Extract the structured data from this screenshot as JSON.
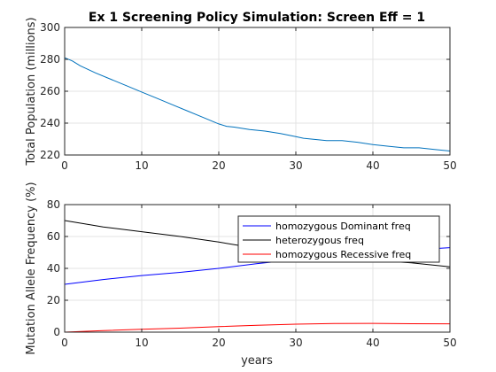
{
  "chart_data": [
    {
      "type": "line",
      "title": "Ex 1 Screening Policy Simulation: Screen Eff = 1",
      "xlabel": "",
      "ylabel": "Total Population (millions)",
      "xlim": [
        0,
        50
      ],
      "ylim": [
        220,
        300
      ],
      "xticks": [
        0,
        10,
        20,
        30,
        40,
        50
      ],
      "yticks": [
        220,
        240,
        260,
        280,
        300
      ],
      "grid": true,
      "series": [
        {
          "color": "#0072bd",
          "x": [
            0,
            1,
            2,
            4,
            6,
            8,
            10,
            12,
            14,
            16,
            18,
            20,
            21,
            22,
            24,
            26,
            28,
            30,
            31,
            32,
            34,
            36,
            38,
            40,
            42,
            44,
            46,
            48,
            50
          ],
          "y": [
            281,
            279,
            276,
            271.5,
            267.5,
            263.5,
            259.5,
            255.5,
            251.5,
            247.5,
            243.5,
            239.5,
            238,
            237.5,
            236,
            235,
            233.5,
            231.5,
            230.5,
            230,
            229,
            229,
            228,
            226.5,
            225.5,
            224.5,
            224.5,
            223.5,
            222.5
          ]
        }
      ]
    },
    {
      "type": "line",
      "title": "",
      "xlabel": "years",
      "ylabel": "Mutation Allele Frequency (%)",
      "xlim": [
        0,
        50
      ],
      "ylim": [
        0,
        80
      ],
      "xticks": [
        0,
        10,
        20,
        30,
        40,
        50
      ],
      "yticks": [
        0,
        20,
        40,
        60,
        80
      ],
      "grid": true,
      "legend": "top-right",
      "series": [
        {
          "name": "homozygous Dominant freq",
          "color": "#0000ff",
          "x": [
            0,
            5,
            10,
            15,
            20,
            25,
            30,
            35,
            40,
            45,
            50
          ],
          "y": [
            30,
            33,
            35.5,
            37.5,
            40,
            43,
            45.5,
            47.5,
            49.5,
            51.5,
            53
          ]
        },
        {
          "name": "heterozygous freq",
          "color": "#000000",
          "x": [
            0,
            5,
            10,
            15,
            20,
            25,
            30,
            35,
            40,
            45,
            50
          ],
          "y": [
            70,
            66,
            63,
            60,
            56.5,
            52.5,
            49,
            47,
            45,
            43.5,
            41
          ]
        },
        {
          "name": "homozygous Recessive freq",
          "color": "#ff0000",
          "x": [
            0,
            5,
            10,
            15,
            20,
            25,
            30,
            35,
            40,
            45,
            50
          ],
          "y": [
            0,
            1,
            1.8,
            2.5,
            3.5,
            4.3,
            5,
            5.4,
            5.5,
            5.3,
            5.2
          ]
        }
      ]
    }
  ]
}
